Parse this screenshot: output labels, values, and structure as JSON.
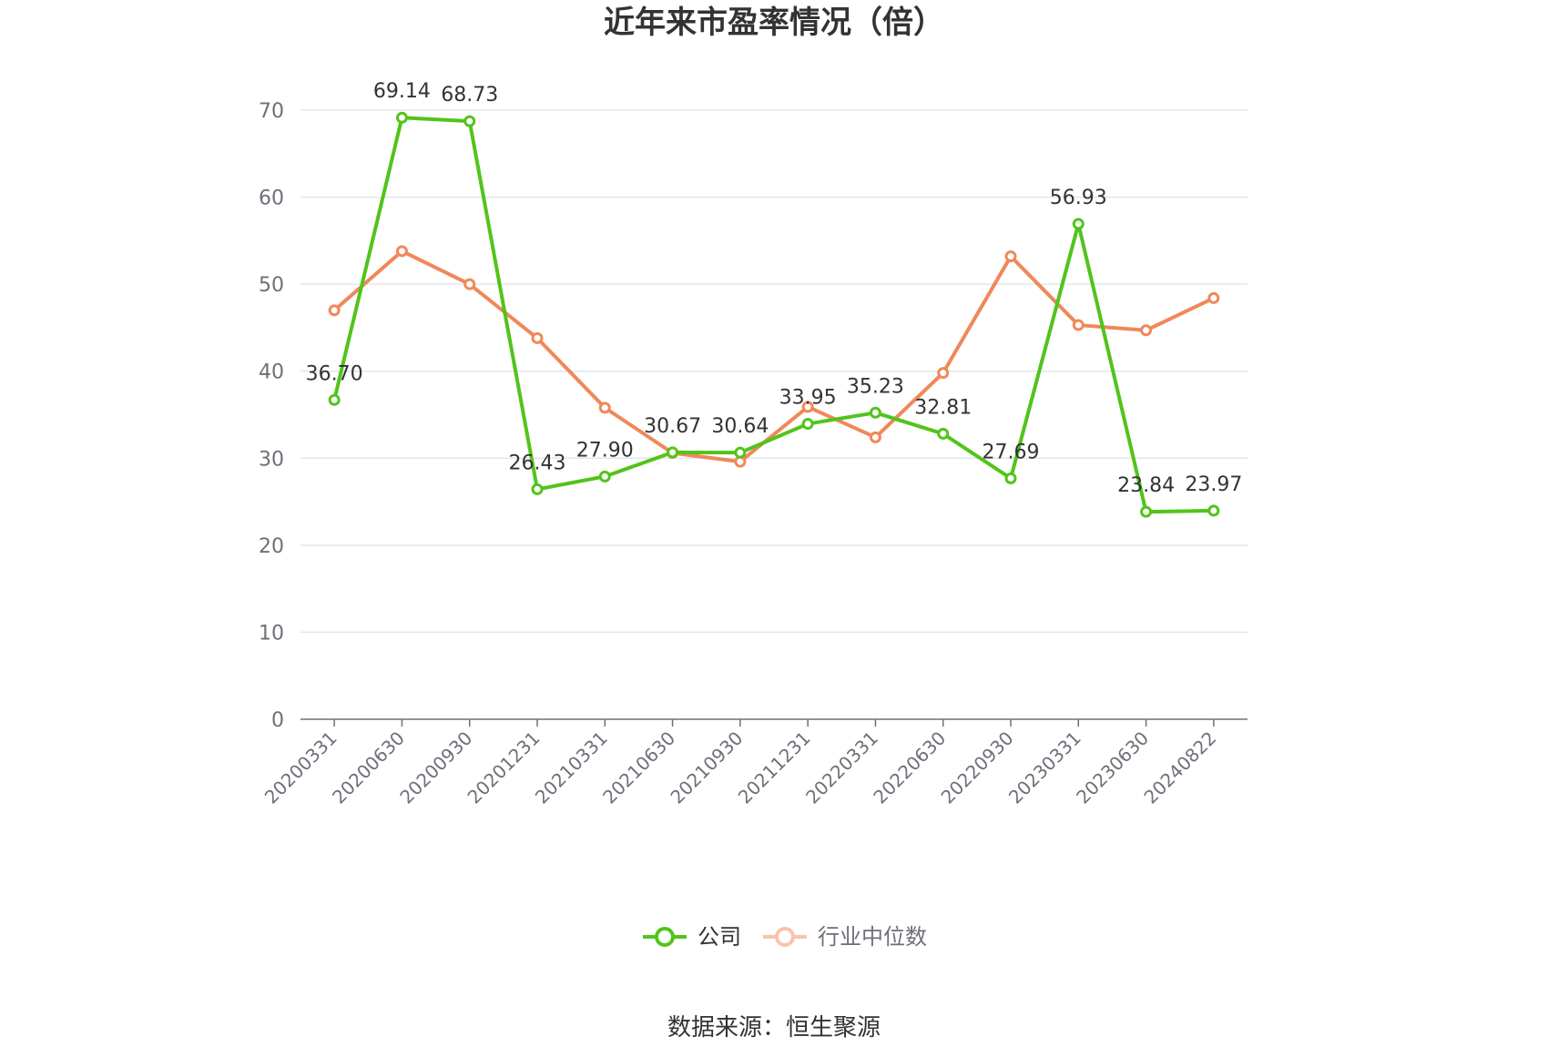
{
  "chart_data": {
    "type": "line",
    "title": "近年来市盈率情况（倍）",
    "categories": [
      "20200331",
      "20200630",
      "20200930",
      "20201231",
      "20210331",
      "20210630",
      "20210930",
      "20211231",
      "20220331",
      "20220630",
      "20220930",
      "20230331",
      "20230630",
      "20240822"
    ],
    "ylim": [
      0,
      70
    ],
    "yticks": [
      0,
      10,
      20,
      30,
      40,
      50,
      60,
      70
    ],
    "grid": true,
    "legend_position": "bottom",
    "series": [
      {
        "name": "公司",
        "color": "#52c41a",
        "values": [
          36.7,
          69.14,
          68.73,
          26.43,
          27.9,
          30.67,
          30.64,
          33.95,
          35.23,
          32.81,
          27.69,
          56.93,
          23.84,
          23.97
        ],
        "labels": [
          "36.70",
          "69.14",
          "68.73",
          "26.43",
          "27.90",
          "30.67",
          "30.64",
          "33.95",
          "35.23",
          "32.81",
          "27.69",
          "56.93",
          "23.84",
          "23.97"
        ]
      },
      {
        "name": "行业中位数",
        "color": "#f0885a",
        "values": [
          47.0,
          53.8,
          50.0,
          43.8,
          35.8,
          30.6,
          29.6,
          35.9,
          32.4,
          39.8,
          53.2,
          45.3,
          44.7,
          48.4
        ]
      }
    ],
    "source": "数据来源：恒生聚源"
  }
}
